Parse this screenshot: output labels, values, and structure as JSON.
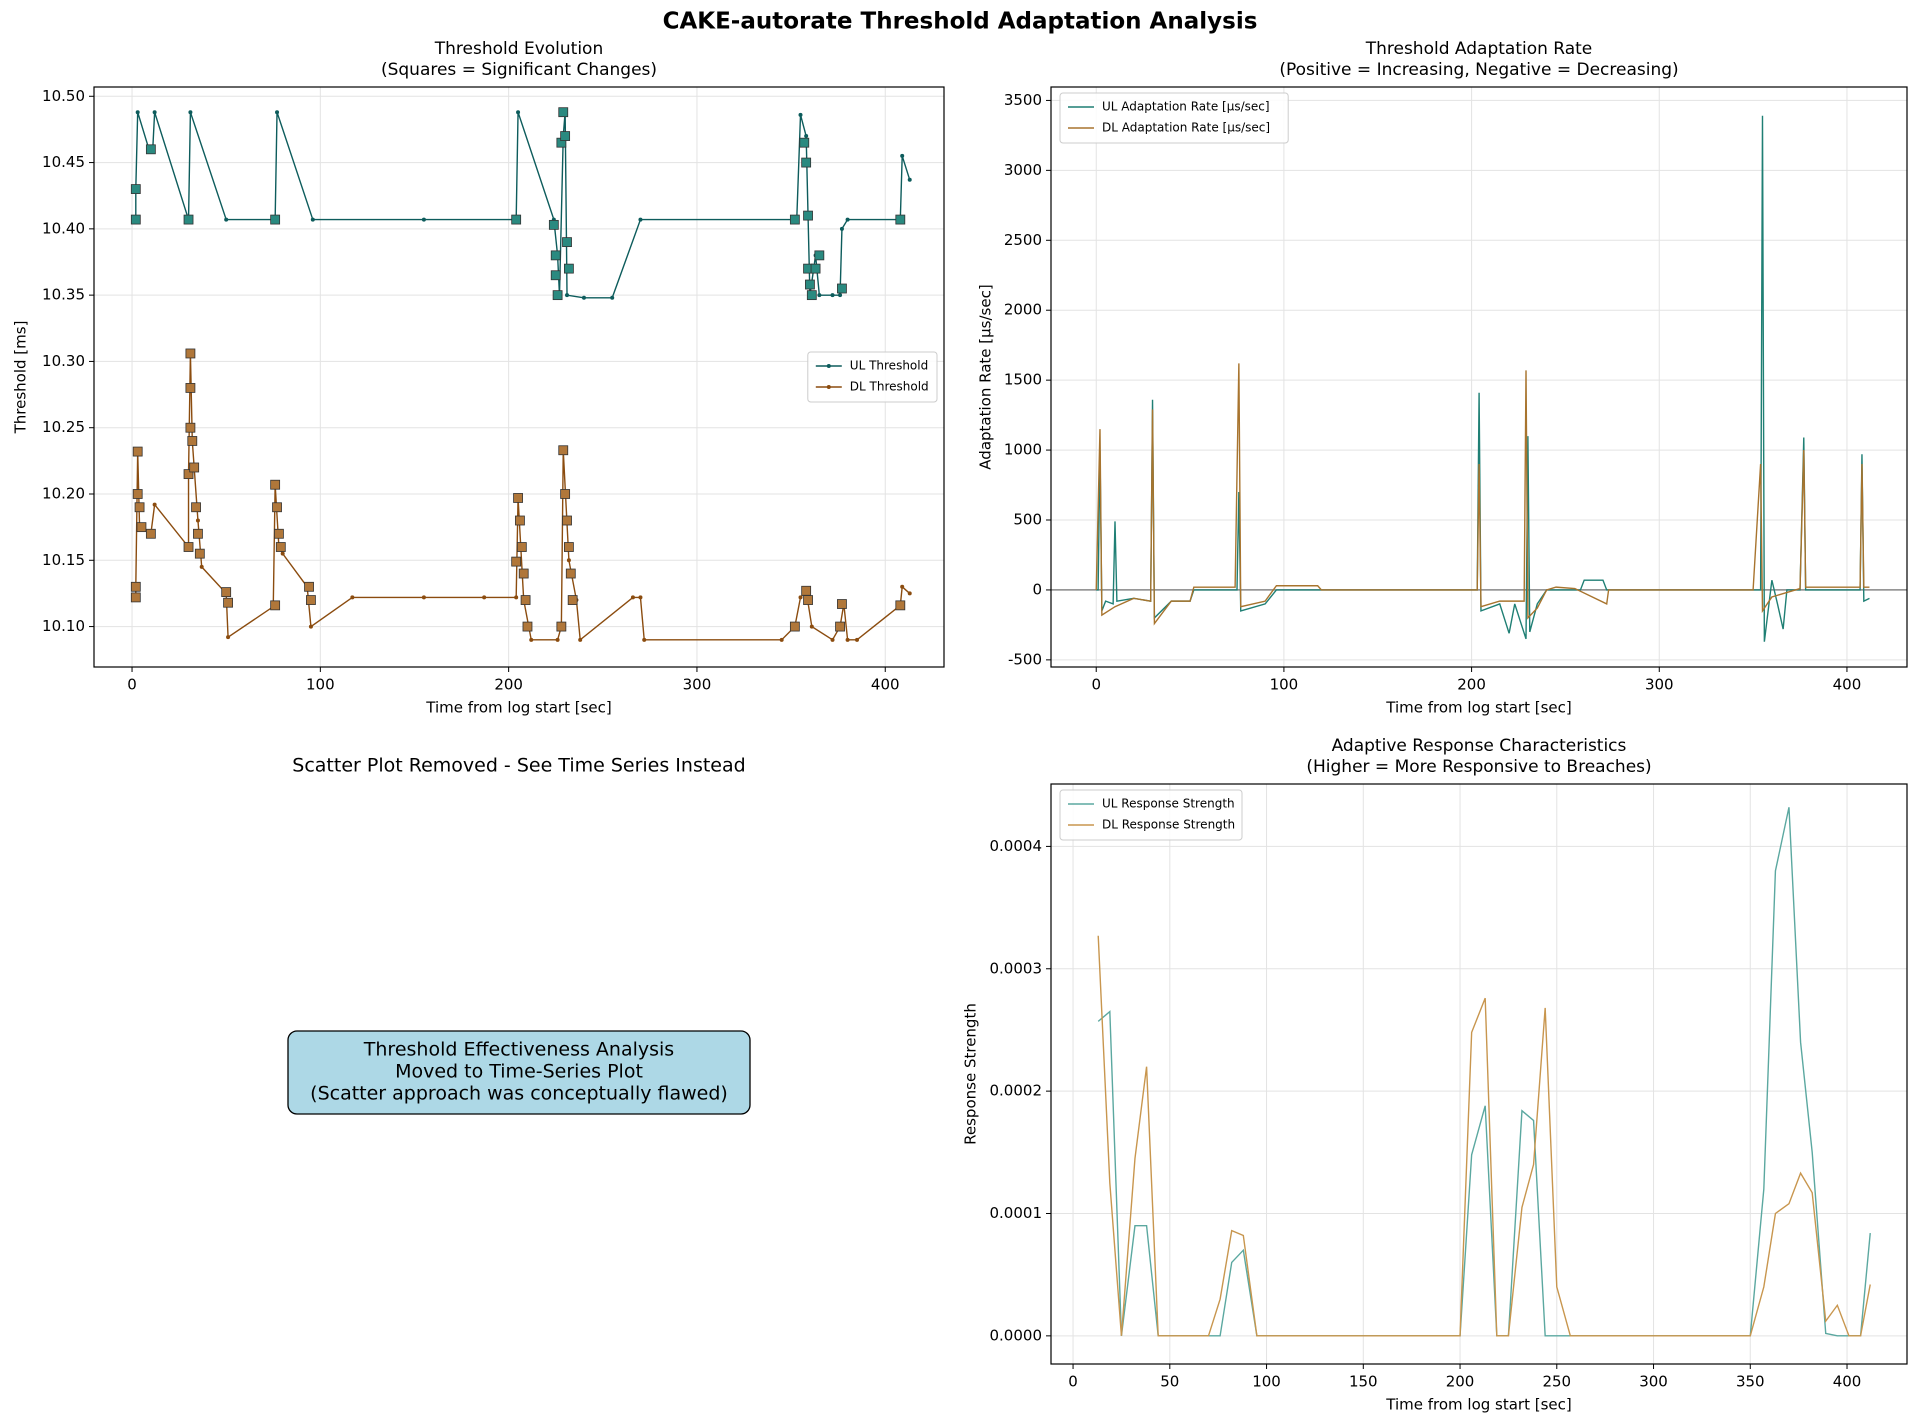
{
  "title": "CAKE-autorate Threshold Adaptation Analysis",
  "chart_data": [
    {
      "type": "line",
      "title": "Threshold Evolution",
      "subtitle": "(Squares = Significant Changes)",
      "xlabel": "Time from log start [sec]",
      "ylabel": "Threshold [ms]",
      "xlim": [
        -20.2,
        431.2
      ],
      "xticks": [
        0,
        100,
        200,
        300,
        400
      ],
      "ylim": [
        10.0695,
        10.507
      ],
      "yticks": [
        {
          "value": 10.1,
          "label": "10.10"
        },
        10.15,
        {
          "value": 10.2,
          "label": "10.20"
        },
        10.25,
        {
          "value": 10.3,
          "label": "10.30"
        },
        10.35,
        {
          "value": 10.4,
          "label": "10.40"
        },
        10.45,
        {
          "value": 10.5,
          "label": "10.50"
        }
      ],
      "grid": true,
      "legend": "center right",
      "series": [
        {
          "name": "UL Threshold",
          "color": "#0d5c5c",
          "marker_color": "#2a8a80",
          "markers": true,
          "x": [
            2,
            2,
            3,
            9,
            11,
            12,
            30,
            31,
            50,
            76,
            77,
            96,
            155,
            204,
            205,
            224,
            226,
            227,
            229,
            230,
            231,
            240,
            255,
            270,
            353,
            355,
            358,
            360,
            363,
            365,
            372,
            376,
            377,
            380,
            408,
            409,
            413
          ],
          "values": [
            10.407,
            10.43,
            10.488,
            10.46,
            10.46,
            10.488,
            10.407,
            10.488,
            10.407,
            10.407,
            10.488,
            10.407,
            10.407,
            10.407,
            10.488,
            10.407,
            10.38,
            10.35,
            10.47,
            10.488,
            10.35,
            10.348,
            10.348,
            10.407,
            10.407,
            10.486,
            10.47,
            10.35,
            10.38,
            10.35,
            10.35,
            10.35,
            10.4,
            10.407,
            10.407,
            10.455,
            10.437
          ],
          "significant_x": [
            2,
            2,
            10,
            30,
            76,
            204,
            224,
            225,
            225,
            226,
            228,
            229,
            230,
            231,
            232,
            352,
            357,
            358,
            359,
            359,
            360,
            361,
            363,
            365,
            377,
            408
          ],
          "significant_y": [
            10.407,
            10.43,
            10.46,
            10.407,
            10.407,
            10.407,
            10.403,
            10.38,
            10.365,
            10.35,
            10.465,
            10.488,
            10.47,
            10.39,
            10.37,
            10.407,
            10.465,
            10.45,
            10.41,
            10.37,
            10.358,
            10.35,
            10.37,
            10.38,
            10.355,
            10.407
          ]
        },
        {
          "name": "DL Threshold",
          "color": "#8b4c0f",
          "marker_color": "#b0773a",
          "markers": true,
          "x": [
            2,
            2,
            3,
            4,
            10,
            12,
            30,
            30,
            31,
            32,
            35,
            37,
            50,
            51,
            75,
            76,
            78,
            80,
            93,
            95,
            117,
            155,
            187,
            204,
            205,
            208,
            212,
            226,
            228,
            229,
            232,
            236,
            238,
            266,
            270,
            272,
            345,
            352,
            355,
            358,
            361,
            372,
            376,
            378,
            380,
            385,
            408,
            409,
            413
          ],
          "values": [
            10.122,
            10.13,
            10.232,
            10.175,
            10.17,
            10.192,
            10.16,
            10.215,
            10.306,
            10.24,
            10.18,
            10.145,
            10.125,
            10.092,
            10.115,
            10.207,
            10.16,
            10.155,
            10.13,
            10.1,
            10.122,
            10.122,
            10.122,
            10.122,
            10.197,
            10.12,
            10.09,
            10.09,
            10.1,
            10.233,
            10.15,
            10.12,
            10.09,
            10.122,
            10.122,
            10.09,
            10.09,
            10.1,
            10.122,
            10.127,
            10.1,
            10.09,
            10.1,
            10.117,
            10.09,
            10.09,
            10.116,
            10.13,
            10.125
          ],
          "significant_x": [
            2,
            2,
            3,
            3,
            4,
            5,
            10,
            30,
            30,
            31,
            31,
            31,
            32,
            33,
            34,
            35,
            36,
            50,
            51,
            76,
            76,
            77,
            78,
            79,
            94,
            95,
            204,
            205,
            206,
            207,
            208,
            209,
            210,
            228,
            229,
            230,
            231,
            232,
            233,
            234,
            352,
            358,
            359,
            376,
            377,
            408
          ],
          "significant_y": [
            10.122,
            10.13,
            10.232,
            10.2,
            10.19,
            10.175,
            10.17,
            10.16,
            10.215,
            10.306,
            10.28,
            10.25,
            10.24,
            10.22,
            10.19,
            10.17,
            10.155,
            10.126,
            10.118,
            10.116,
            10.207,
            10.19,
            10.17,
            10.16,
            10.13,
            10.12,
            10.149,
            10.197,
            10.18,
            10.16,
            10.14,
            10.12,
            10.1,
            10.1,
            10.233,
            10.2,
            10.18,
            10.16,
            10.14,
            10.12,
            10.1,
            10.127,
            10.12,
            10.1,
            10.117,
            10.116
          ]
        }
      ]
    },
    {
      "type": "line",
      "title": "Threshold Adaptation Rate",
      "subtitle": "(Positive = Increasing, Negative = Decreasing)",
      "xlabel": "Time from log start [sec]",
      "ylabel": "Adaptation Rate [µs/sec]",
      "xlim": [
        -24.1,
        432
      ],
      "xticks": [
        0,
        100,
        200,
        300,
        400
      ],
      "ylim": [
        -551,
        3596
      ],
      "yticks": [
        -500,
        0,
        500,
        1000,
        1500,
        2000,
        2500,
        3000,
        3500
      ],
      "grid": true,
      "legend": "upper left",
      "hline": 0,
      "series": [
        {
          "name": "UL Adaptation Rate [µs/sec]",
          "color": "#1f7f74",
          "x": [
            0,
            1,
            2,
            3,
            5,
            9,
            10,
            11,
            20,
            29,
            30,
            31,
            40,
            50,
            52,
            75,
            76,
            77,
            90,
            96,
            120,
            200,
            203,
            204,
            205,
            215,
            220,
            223,
            229,
            230,
            231,
            235,
            240,
            258,
            260,
            270,
            272,
            350,
            354,
            355,
            356,
            360,
            363,
            366,
            368,
            375,
            377,
            378,
            407,
            408,
            409,
            412
          ],
          "values": [
            0,
            0,
            1000,
            -150,
            -80,
            -100,
            490,
            -80,
            -60,
            -80,
            1360,
            -200,
            -80,
            -80,
            0,
            0,
            700,
            -150,
            -100,
            0,
            0,
            0,
            0,
            1410,
            -150,
            -100,
            -310,
            -100,
            -350,
            1100,
            -300,
            -100,
            0,
            0,
            70,
            70,
            0,
            0,
            0,
            3390,
            -370,
            70,
            -100,
            -280,
            0,
            0,
            1090,
            0,
            0,
            970,
            -80,
            -60
          ]
        },
        {
          "name": "DL Adaptation Rate [µs/sec]",
          "color": "#a8742e",
          "x": [
            0,
            2,
            3,
            10,
            20,
            29,
            30,
            31,
            40,
            50,
            52,
            74,
            76,
            77,
            90,
            96,
            118,
            120,
            200,
            203,
            204,
            205,
            215,
            228,
            229,
            230,
            235,
            240,
            245,
            255,
            272,
            273,
            350,
            354,
            355,
            360,
            375,
            377,
            378,
            407,
            408,
            409,
            412
          ],
          "values": [
            0,
            1150,
            -180,
            -120,
            -60,
            -80,
            1290,
            -240,
            -80,
            -80,
            20,
            20,
            1620,
            -120,
            -80,
            30,
            30,
            0,
            0,
            0,
            900,
            -120,
            -80,
            -80,
            1570,
            -200,
            -130,
            0,
            20,
            10,
            -100,
            0,
            0,
            900,
            -150,
            -50,
            10,
            1000,
            20,
            20,
            900,
            20,
            20
          ]
        }
      ]
    },
    {
      "type": "text",
      "title": "Scatter Plot Removed - See Time Series Instead",
      "text_lines": [
        "Threshold Effectiveness Analysis",
        "Moved to Time-Series Plot",
        "(Scatter approach was conceptually flawed)"
      ]
    },
    {
      "type": "line",
      "title": "Adaptive Response Characteristics",
      "subtitle": "(Higher = More Responsive to Breaches)",
      "xlabel": "Time from log start [sec]",
      "ylabel": "Response Strength",
      "xlim": [
        -11.4,
        431
      ],
      "xticks": [
        0,
        50,
        100,
        150,
        200,
        250,
        300,
        350,
        400
      ],
      "ylim": [
        -2.3e-05,
        0.000451
      ],
      "yticks": [
        {
          "value": 0,
          "label": "0.0000"
        },
        0.0001,
        0.0002,
        0.0003,
        0.0004
      ],
      "grid": true,
      "legend": "upper left",
      "x": [
        13,
        19,
        25,
        32,
        38,
        44,
        51,
        57,
        63,
        70,
        76,
        82,
        88,
        95,
        200,
        206,
        213,
        219,
        225,
        232,
        238,
        244,
        250,
        257,
        350,
        357,
        363,
        370,
        376,
        382,
        389,
        395,
        401,
        407,
        412
      ],
      "series": [
        {
          "name": "UL Response Strength",
          "color": "#5ba8a0",
          "values": [
            0.000257,
            0.000265,
            0,
            9e-05,
            9e-05,
            0,
            0,
            0,
            0,
            0,
            0,
            6e-05,
            7e-05,
            0,
            0,
            0.000148,
            0.000188,
            0,
            0,
            0.000184,
            0.000176,
            0,
            0,
            0,
            0,
            0.00012,
            0.00038,
            0.000432,
            0.00024,
            0.00015,
            2e-06,
            0,
            0,
            0,
            8.4e-05
          ]
        },
        {
          "name": "DL Response Strength",
          "color": "#c8964e",
          "values": [
            0.000327,
            0.000125,
            0,
            0.000145,
            0.00022,
            0,
            0,
            0,
            0,
            0,
            3e-05,
            8.6e-05,
            8.2e-05,
            0,
            0,
            0.000248,
            0.000276,
            0,
            0,
            0.000105,
            0.00014,
            0.000268,
            4e-05,
            0,
            0,
            4e-05,
            0.0001,
            0.000108,
            0.000133,
            0.000117,
            1.2e-05,
            2.5e-05,
            0,
            0,
            4.2e-05
          ]
        }
      ]
    }
  ]
}
